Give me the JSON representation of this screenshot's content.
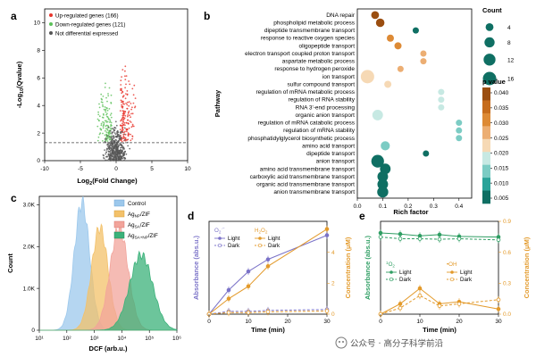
{
  "panels": {
    "a": "a",
    "b": "b",
    "c": "c",
    "d": "d",
    "e": "e"
  },
  "watermark": "公众号 · 高分子科学前沿",
  "colors": {
    "up": "#e8352c",
    "down": "#5cc15a",
    "ns": "#555555",
    "ctrl": "#9cc8ec",
    "np": "#f3c16a",
    "sa": "#f2a49b",
    "sanp": "#3bb27a",
    "d_left": "#7b73c8",
    "d_right": "#e39a2b",
    "e_left": "#2f9e63",
    "e_right": "#e39a2b",
    "bubble_scale": [
      "#0f6f63",
      "#2aa399",
      "#7cccc4",
      "#c7e9e3",
      "#f6d9b5",
      "#ecae73",
      "#dd8a35",
      "#c66c1c",
      "#9b4e10"
    ]
  },
  "chart_data": [
    {
      "panel": "a",
      "type": "scatter",
      "legend": [
        "Up-regulated genes (166)",
        "Down-regulated genes (121)",
        "Not differential expressed"
      ],
      "legend_position": "top-left",
      "xlabel": "Log2(Fold Change)",
      "xlabel_main": "Log",
      "xlabel_sub": "2",
      "xlabel_rest": "(Fold Change)",
      "ylabel": "-Log10(Qvalue)",
      "ylabel_main": "-Log",
      "ylabel_sub": "10",
      "ylabel_rest": "(Qvalue)",
      "xlim": [
        -10,
        10
      ],
      "ylim": [
        0,
        11
      ],
      "xticks": [
        -10,
        -5,
        0,
        5,
        10
      ],
      "yticks": [
        0,
        2,
        4,
        6,
        8,
        10
      ],
      "threshold_y": 1.3,
      "series": [
        {
          "name": "Up-regulated genes (166)",
          "count": 166,
          "color": "#e8352c"
        },
        {
          "name": "Down-regulated genes (121)",
          "count": 121,
          "color": "#5cc15a"
        },
        {
          "name": "Not differential expressed",
          "count": 420,
          "color": "#555555"
        }
      ]
    },
    {
      "panel": "b",
      "type": "scatter",
      "subtype": "bubble",
      "xlabel": "Rich factor",
      "ylabel": "Pathway",
      "xlim": [
        0.0,
        0.45
      ],
      "xticks": [
        0.0,
        0.1,
        0.2,
        0.3,
        0.4
      ],
      "size_legend_title": "Count",
      "size_legend": [
        4,
        8,
        12,
        16
      ],
      "color_legend_title": "p value",
      "color_ticks": [
        "0.040",
        "0.035",
        "0.030",
        "0.025",
        "0.020",
        "0.015",
        "0.010",
        "0.005"
      ],
      "pathways": [
        {
          "name": "DNA repair",
          "rich": 0.07,
          "count": 4,
          "p": 0.041
        },
        {
          "name": "phospholipid metabolic process",
          "rich": 0.09,
          "count": 5,
          "p": 0.038
        },
        {
          "name": "dipeptide transmembrane transport",
          "rich": 0.23,
          "count": 2,
          "p": 0.006
        },
        {
          "name": "response to reactive oxygen species",
          "rich": 0.13,
          "count": 3,
          "p": 0.032
        },
        {
          "name": "oligopeptide transport",
          "rich": 0.16,
          "count": 3,
          "p": 0.03
        },
        {
          "name": "electron transport coupled proton transport",
          "rich": 0.26,
          "count": 2,
          "p": 0.026
        },
        {
          "name": "aspartate metabolic process",
          "rich": 0.26,
          "count": 2,
          "p": 0.026
        },
        {
          "name": "response to hydrogen peroxide",
          "rich": 0.17,
          "count": 2,
          "p": 0.028
        },
        {
          "name": "ion transport",
          "rich": 0.04,
          "count": 16,
          "p": 0.022
        },
        {
          "name": "sulfur compound transport",
          "rich": 0.12,
          "count": 3,
          "p": 0.021
        },
        {
          "name": "regulation of mRNA metabolic process",
          "rich": 0.33,
          "count": 2,
          "p": 0.018
        },
        {
          "name": "regulation of RNA stability",
          "rich": 0.33,
          "count": 2,
          "p": 0.018
        },
        {
          "name": "RNA 3'-end processing",
          "rich": 0.33,
          "count": 2,
          "p": 0.018
        },
        {
          "name": "organic anion transport",
          "rich": 0.08,
          "count": 9,
          "p": 0.016
        },
        {
          "name": "regulation of mRNA catabolic process",
          "rich": 0.4,
          "count": 2,
          "p": 0.014
        },
        {
          "name": "regulation of mRNA stability",
          "rich": 0.4,
          "count": 2,
          "p": 0.014
        },
        {
          "name": "phosphatidylglycerol biosynthetic process",
          "rich": 0.4,
          "count": 2,
          "p": 0.014
        },
        {
          "name": "amino acid transport",
          "rich": 0.11,
          "count": 6,
          "p": 0.011
        },
        {
          "name": "dipeptide transport",
          "rich": 0.27,
          "count": 2,
          "p": 0.004
        },
        {
          "name": "anion transport",
          "rich": 0.08,
          "count": 14,
          "p": 0.004
        },
        {
          "name": "amino acid transmembrane transport",
          "rich": 0.11,
          "count": 9,
          "p": 0.003
        },
        {
          "name": "carboxylic acid transmembrane transport",
          "rich": 0.1,
          "count": 9,
          "p": 0.003
        },
        {
          "name": "organic acid transmembrane transport",
          "rich": 0.1,
          "count": 9,
          "p": 0.003
        },
        {
          "name": "anion transmembrane transport",
          "rich": 0.1,
          "count": 10,
          "p": 0.003
        }
      ]
    },
    {
      "panel": "c",
      "type": "area",
      "xlabel": "DCF (arb.u.)",
      "ylabel": "Count",
      "x_scale": "log",
      "xlim": [
        10,
        1000000
      ],
      "xticks": [
        "10¹",
        "10²",
        "10³",
        "10⁴",
        "10⁵",
        "10⁶"
      ],
      "ylim": [
        0,
        3200
      ],
      "yticks": [
        "0",
        "1.0K",
        "2.0K",
        "3.0K"
      ],
      "ytick_values": [
        0,
        1000,
        2000,
        3000
      ],
      "legend_position": "top-right",
      "series": [
        {
          "name": "Control",
          "name_main": "Control",
          "name_sub": "",
          "center_log": 2.55,
          "width_log": 0.28,
          "peak": 3050,
          "color": "#9cc8ec"
        },
        {
          "name": "AgNP/ZIF",
          "name_main": "Ag",
          "name_sub": "NP",
          "name_rest": "/ZIF",
          "center_log": 3.2,
          "width_log": 0.3,
          "peak": 2450,
          "color": "#f3c16a"
        },
        {
          "name": "AgSA/ZIF",
          "name_main": "Ag",
          "name_sub": "SA",
          "name_rest": "/ZIF",
          "center_log": 3.9,
          "width_log": 0.33,
          "peak": 2450,
          "color": "#f2a49b"
        },
        {
          "name": "AgSA+NP/ZIF",
          "name_main": "Ag",
          "name_sub": "SA+NP",
          "name_rest": "/ZIF",
          "center_log": 4.7,
          "width_log": 0.42,
          "peak": 1800,
          "color": "#3bb27a"
        }
      ]
    },
    {
      "panel": "d",
      "type": "line",
      "xlabel": "Time (min)",
      "ylabel_left": "Absorbance (abs.u.)",
      "ylabel_right": "Concentration (μM)",
      "x": [
        0,
        5,
        10,
        15,
        30
      ],
      "xticks": [
        0,
        10,
        20,
        30
      ],
      "xlim": [
        0,
        30
      ],
      "ylim_left": [
        0,
        1
      ],
      "ylim_right": [
        0,
        6
      ],
      "yticks_right": [
        0,
        2,
        4
      ],
      "legend_left_title": "O2⁻",
      "legend_right_title": "H2O2",
      "legend_left_title_main": "O",
      "legend_left_title_sub": "2",
      "legend_left_title_sup": "·−",
      "legend_right_title_main": "H",
      "legend_right_title_sub1": "2",
      "legend_right_title_mid": "O",
      "legend_right_title_sub2": "2",
      "series": [
        {
          "name": "Light",
          "group": "left",
          "axis": "left",
          "values": [
            0.0,
            0.26,
            0.46,
            0.59,
            0.85
          ],
          "style": "solid",
          "marker": "filled",
          "color": "#7b73c8"
        },
        {
          "name": "Dark",
          "group": "left",
          "axis": "left",
          "values": [
            0.0,
            0.03,
            0.03,
            0.04,
            0.05
          ],
          "style": "dashed",
          "marker": "open",
          "color": "#7b73c8"
        },
        {
          "name": "Light",
          "group": "right",
          "axis": "right",
          "values": [
            0.0,
            1.0,
            1.8,
            3.1,
            5.5
          ],
          "style": "solid",
          "marker": "filled",
          "color": "#e39a2b"
        },
        {
          "name": "Dark",
          "group": "right",
          "axis": "right",
          "values": [
            0.0,
            0.1,
            0.1,
            0.15,
            0.2
          ],
          "style": "dashed",
          "marker": "open",
          "color": "#e39a2b"
        }
      ]
    },
    {
      "panel": "e",
      "type": "line",
      "xlabel": "Time (min)",
      "ylabel_left": "Absorbance (abs.u.)",
      "ylabel_right": "Concentration (μM)",
      "x": [
        0,
        5,
        10,
        15,
        20,
        30
      ],
      "xticks": [
        0,
        10,
        20,
        30
      ],
      "xlim": [
        0,
        30
      ],
      "ylim_left": [
        0,
        1.6
      ],
      "ylim_right": [
        0,
        0.9
      ],
      "yticks_right": [
        "0.0",
        "0.3",
        "0.6",
        "0.9"
      ],
      "ytick_values_right": [
        0,
        0.3,
        0.6,
        0.9
      ],
      "legend_left_title": "1O2",
      "legend_right_title": "•OH",
      "legend_left_title_sup": "1",
      "legend_left_title_main": "O",
      "legend_left_title_sub": "2",
      "series": [
        {
          "name": "Light",
          "group": "left",
          "axis": "left",
          "values": [
            1.4,
            1.38,
            1.35,
            1.37,
            1.34,
            1.33
          ],
          "style": "solid",
          "marker": "filled",
          "color": "#2f9e63"
        },
        {
          "name": "Dark",
          "group": "left",
          "axis": "left",
          "values": [
            1.33,
            1.3,
            1.3,
            1.29,
            1.3,
            1.28
          ],
          "style": "dashed",
          "marker": "open",
          "color": "#2f9e63"
        },
        {
          "name": "Light",
          "group": "right",
          "axis": "right",
          "values": [
            0.0,
            0.1,
            0.25,
            0.1,
            0.12,
            0.05
          ],
          "style": "solid",
          "marker": "filled",
          "color": "#e39a2b"
        },
        {
          "name": "Dark",
          "group": "right",
          "axis": "right",
          "values": [
            0.0,
            0.06,
            0.18,
            0.08,
            0.1,
            0.14
          ],
          "style": "dashed",
          "marker": "open",
          "color": "#e39a2b"
        }
      ]
    }
  ]
}
